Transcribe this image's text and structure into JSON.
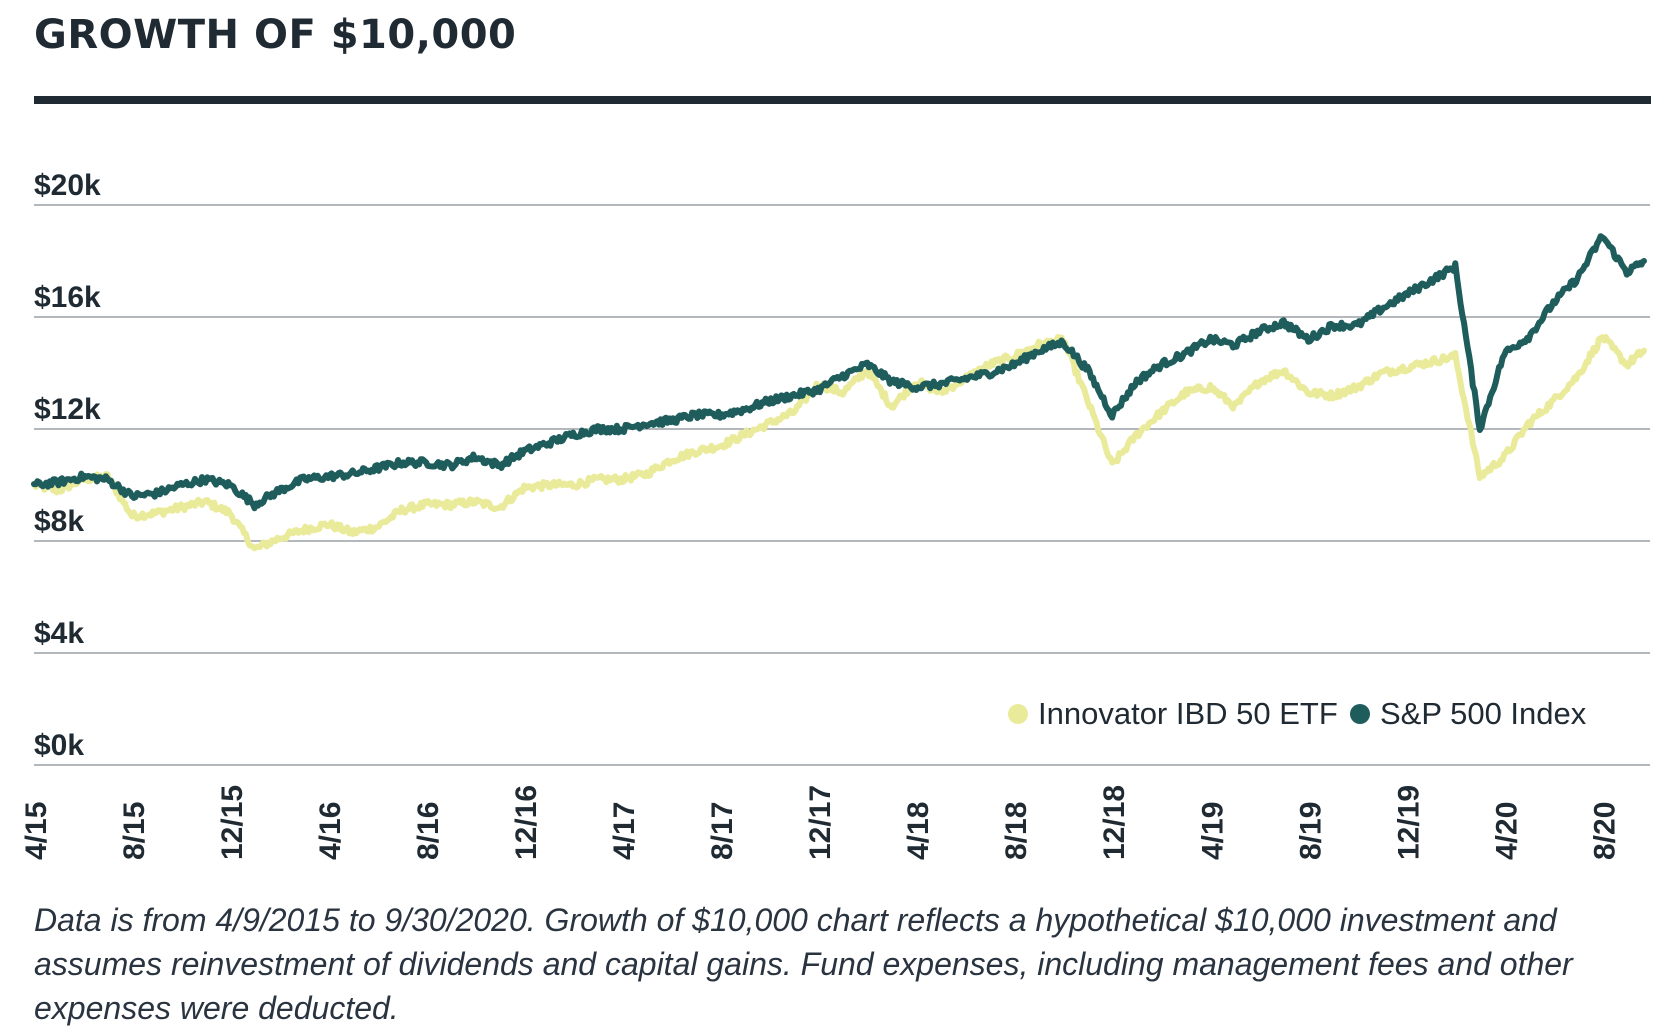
{
  "chart_data": {
    "type": "line",
    "title": "GROWTH OF $10,000",
    "y_ticks": [
      "$0k",
      "$4k",
      "$8k",
      "$12k",
      "$16k",
      "$20k"
    ],
    "y_tick_values": [
      0,
      4000,
      8000,
      12000,
      16000,
      20000
    ],
    "ylim": [
      0,
      20000
    ],
    "x_ticks": [
      "4/15",
      "8/15",
      "12/15",
      "4/16",
      "8/16",
      "12/16",
      "4/17",
      "8/17",
      "12/17",
      "4/18",
      "8/18",
      "12/18",
      "4/19",
      "8/19",
      "12/19",
      "4/20",
      "8/20"
    ],
    "x_range_months": [
      0,
      65.7
    ],
    "legend_position": "bottom-right",
    "series": [
      {
        "name": "Innovator IBD 50 ETF",
        "color": "#eaeb9a",
        "points": [
          [
            0,
            10000
          ],
          [
            1,
            9800
          ],
          [
            2,
            10200
          ],
          [
            3,
            10300
          ],
          [
            4,
            8900
          ],
          [
            5,
            9000
          ],
          [
            6,
            9200
          ],
          [
            7,
            9400
          ],
          [
            8,
            9000
          ],
          [
            9,
            7700
          ],
          [
            10,
            8100
          ],
          [
            11,
            8400
          ],
          [
            12,
            8600
          ],
          [
            13,
            8300
          ],
          [
            14,
            8500
          ],
          [
            15,
            9100
          ],
          [
            16,
            9300
          ],
          [
            17,
            9300
          ],
          [
            18,
            9400
          ],
          [
            19,
            9200
          ],
          [
            20,
            9900
          ],
          [
            21,
            10000
          ],
          [
            22,
            10000
          ],
          [
            23,
            10200
          ],
          [
            24,
            10200
          ],
          [
            25,
            10400
          ],
          [
            26,
            10900
          ],
          [
            27,
            11200
          ],
          [
            28,
            11400
          ],
          [
            29,
            11800
          ],
          [
            30,
            12200
          ],
          [
            31,
            12600
          ],
          [
            32,
            13600
          ],
          [
            33,
            13300
          ],
          [
            34,
            14100
          ],
          [
            35,
            12800
          ],
          [
            36,
            13700
          ],
          [
            37,
            13300
          ],
          [
            38,
            13800
          ],
          [
            39,
            14300
          ],
          [
            40,
            14600
          ],
          [
            41,
            15000
          ],
          [
            42,
            15200
          ],
          [
            43,
            13000
          ],
          [
            44,
            10700
          ],
          [
            45,
            11800
          ],
          [
            46,
            12600
          ],
          [
            47,
            13300
          ],
          [
            48,
            13500
          ],
          [
            49,
            12800
          ],
          [
            50,
            13700
          ],
          [
            51,
            14100
          ],
          [
            52,
            13300
          ],
          [
            53,
            13200
          ],
          [
            54,
            13500
          ],
          [
            55,
            14000
          ],
          [
            56,
            14200
          ],
          [
            57,
            14400
          ],
          [
            58,
            14600
          ],
          [
            59,
            10300
          ],
          [
            60,
            11000
          ],
          [
            61,
            12200
          ],
          [
            62,
            13000
          ],
          [
            63,
            13900
          ],
          [
            64,
            15300
          ],
          [
            65,
            14300
          ],
          [
            65.7,
            14800
          ]
        ]
      },
      {
        "name": "S&P 500 Index",
        "color": "#1f5c5c",
        "points": [
          [
            0,
            10000
          ],
          [
            1,
            10100
          ],
          [
            2,
            10300
          ],
          [
            3,
            10200
          ],
          [
            4,
            9600
          ],
          [
            5,
            9700
          ],
          [
            6,
            10000
          ],
          [
            7,
            10200
          ],
          [
            8,
            10000
          ],
          [
            9,
            9300
          ],
          [
            10,
            9800
          ],
          [
            11,
            10200
          ],
          [
            12,
            10300
          ],
          [
            13,
            10400
          ],
          [
            14,
            10600
          ],
          [
            15,
            10800
          ],
          [
            16,
            10800
          ],
          [
            17,
            10700
          ],
          [
            18,
            11000
          ],
          [
            19,
            10700
          ],
          [
            20,
            11200
          ],
          [
            21,
            11500
          ],
          [
            22,
            11800
          ],
          [
            23,
            12000
          ],
          [
            24,
            12000
          ],
          [
            25,
            12200
          ],
          [
            26,
            12300
          ],
          [
            27,
            12500
          ],
          [
            28,
            12500
          ],
          [
            29,
            12700
          ],
          [
            30,
            13000
          ],
          [
            31,
            13200
          ],
          [
            32,
            13400
          ],
          [
            33,
            13900
          ],
          [
            34,
            14300
          ],
          [
            35,
            13700
          ],
          [
            36,
            13500
          ],
          [
            37,
            13600
          ],
          [
            38,
            13800
          ],
          [
            39,
            14000
          ],
          [
            40,
            14300
          ],
          [
            41,
            14800
          ],
          [
            42,
            15100
          ],
          [
            43,
            14100
          ],
          [
            44,
            12500
          ],
          [
            45,
            13700
          ],
          [
            46,
            14300
          ],
          [
            47,
            14700
          ],
          [
            48,
            15200
          ],
          [
            49,
            15000
          ],
          [
            50,
            15500
          ],
          [
            51,
            15800
          ],
          [
            52,
            15200
          ],
          [
            53,
            15700
          ],
          [
            54,
            15700
          ],
          [
            55,
            16300
          ],
          [
            56,
            16800
          ],
          [
            57,
            17300
          ],
          [
            58,
            17800
          ],
          [
            59,
            12000
          ],
          [
            60,
            14700
          ],
          [
            61,
            15300
          ],
          [
            62,
            16500
          ],
          [
            63,
            17400
          ],
          [
            64,
            18900
          ],
          [
            65,
            17600
          ],
          [
            65.7,
            18000
          ]
        ]
      }
    ],
    "legend": [
      {
        "label": "Innovator IBD 50 ETF",
        "color": "#eaeb9a"
      },
      {
        "label": "S&P 500 Index",
        "color": "#1f5c5c"
      }
    ],
    "caption": "Data is from 4/9/2015 to 9/30/2020. Growth of $10,000 chart reflects a hypothetical $10,000 investment and assumes reinvestment of dividends and capital gains. Fund expenses, including management fees and other expenses were deducted."
  }
}
